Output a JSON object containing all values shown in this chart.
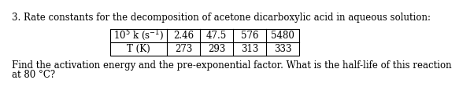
{
  "title": "3. Rate constants for the decomposition of acetone dicarboxylic acid in aqueous solution:",
  "table_row1_header": "10$^5$ k (s$^{-1}$)",
  "table_row2_header": "T (K)",
  "row1_values": [
    "2.46",
    "47.5",
    "576",
    "5480"
  ],
  "row2_values": [
    "273",
    "293",
    "313",
    "333"
  ],
  "footer_line1": "Find the activation energy and the pre-exponential factor. What is the half-life of this reaction",
  "footer_line2": "at 80 °C?",
  "font_size": 8.5,
  "text_color": "#000000",
  "background_color": "#ffffff"
}
